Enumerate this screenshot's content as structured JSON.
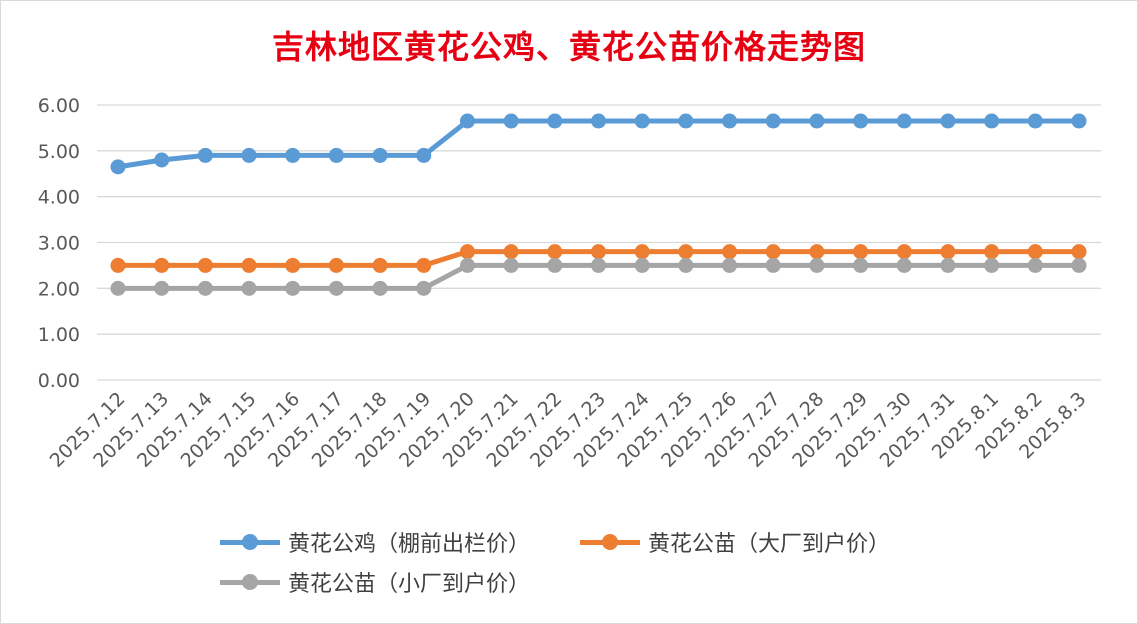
{
  "chart_data": {
    "type": "line",
    "title": "吉林地区黄花公鸡、黄花公苗价格走势图",
    "categories": [
      "2025.7.12",
      "2025.7.13",
      "2025.7.14",
      "2025.7.15",
      "2025.7.16",
      "2025.7.17",
      "2025.7.18",
      "2025.7.19",
      "2025.7.20",
      "2025.7.21",
      "2025.7.22",
      "2025.7.23",
      "2025.7.24",
      "2025.7.25",
      "2025.7.26",
      "2025.7.27",
      "2025.7.28",
      "2025.7.29",
      "2025.7.30",
      "2025.7.31",
      "2025.8.1",
      "2025.8.2",
      "2025.8.3"
    ],
    "ylim": [
      0,
      6
    ],
    "yticks": [
      "0.00",
      "1.00",
      "2.00",
      "3.00",
      "4.00",
      "5.00",
      "6.00"
    ],
    "grid": true,
    "legend_position": "bottom",
    "series": [
      {
        "name": "黄花公鸡（棚前出栏价）",
        "color": "#5b9bd5",
        "values": [
          4.65,
          4.8,
          4.9,
          4.9,
          4.9,
          4.9,
          4.9,
          4.9,
          5.65,
          5.65,
          5.65,
          5.65,
          5.65,
          5.65,
          5.65,
          5.65,
          5.65,
          5.65,
          5.65,
          5.65,
          5.65,
          5.65,
          5.65
        ]
      },
      {
        "name": "黄花公苗（大厂到户价）",
        "color": "#ed7d31",
        "values": [
          2.5,
          2.5,
          2.5,
          2.5,
          2.5,
          2.5,
          2.5,
          2.5,
          2.8,
          2.8,
          2.8,
          2.8,
          2.8,
          2.8,
          2.8,
          2.8,
          2.8,
          2.8,
          2.8,
          2.8,
          2.8,
          2.8,
          2.8
        ]
      },
      {
        "name": "黄花公苗（小厂到户价）",
        "color": "#a5a5a5",
        "values": [
          2.0,
          2.0,
          2.0,
          2.0,
          2.0,
          2.0,
          2.0,
          2.0,
          2.5,
          2.5,
          2.5,
          2.5,
          2.5,
          2.5,
          2.5,
          2.5,
          2.5,
          2.5,
          2.5,
          2.5,
          2.5,
          2.5,
          2.5
        ]
      }
    ]
  }
}
